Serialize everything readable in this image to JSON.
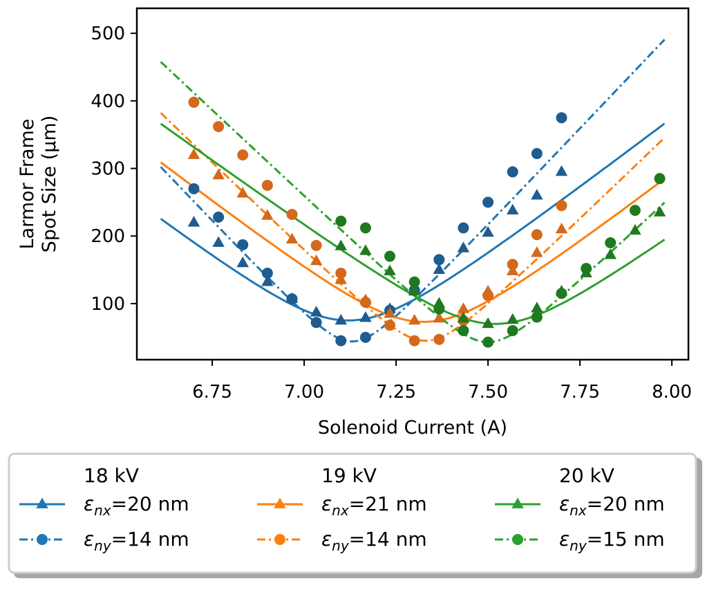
{
  "chart_data": {
    "type": "line",
    "title": "",
    "xlabel": "Solenoid Current (A)",
    "ylabel_line1": "Larmor Frame",
    "ylabel_line2": "Spot Size (μm)",
    "xlim": [
      6.545,
      8.045
    ],
    "ylim": [
      17,
      537
    ],
    "xticks": [
      6.75,
      7.0,
      7.25,
      7.5,
      7.75,
      8.0
    ],
    "xtick_labels": [
      "6.75",
      "7.00",
      "7.25",
      "7.50",
      "7.75",
      "8.00"
    ],
    "yticks": [
      100,
      200,
      300,
      400,
      500
    ],
    "ytick_labels": [
      "100",
      "200",
      "300",
      "400",
      "500"
    ],
    "legend": {
      "placement": "below",
      "columns": [
        {
          "header": "18 kV",
          "entries": [
            {
              "sym": "ε",
              "sub": "nx",
              "value": "=20 nm",
              "series": 0
            },
            {
              "sym": "ε",
              "sub": "ny",
              "value": "=14 nm",
              "series": 1
            }
          ]
        },
        {
          "header": "19 kV",
          "entries": [
            {
              "sym": "ε",
              "sub": "nx",
              "value": "=21 nm",
              "series": 2
            },
            {
              "sym": "ε",
              "sub": "ny",
              "value": "=14 nm",
              "series": 3
            }
          ]
        },
        {
          "header": "20 kV",
          "entries": [
            {
              "sym": "ε",
              "sub": "nx",
              "value": "=20 nm",
              "series": 4
            },
            {
              "sym": "ε",
              "sub": "ny",
              "value": "=15 nm",
              "series": 5
            }
          ]
        }
      ]
    },
    "series": [
      {
        "name": "18 kV εnx=20 nm",
        "color": "#1f77b4",
        "point_color": "#1f5c8f",
        "marker": "triangle",
        "linestyle": "solid",
        "fit": {
          "x0": 7.12,
          "y0": 75,
          "slope": 417,
          "range": [
            6.61,
            7.98
          ]
        },
        "points": [
          [
            6.7,
            220
          ],
          [
            6.767,
            190
          ],
          [
            6.833,
            160
          ],
          [
            6.9,
            132
          ],
          [
            6.967,
            107
          ],
          [
            7.033,
            87
          ],
          [
            7.1,
            75
          ],
          [
            7.167,
            79
          ],
          [
            7.233,
            92
          ],
          [
            7.3,
            120
          ],
          [
            7.367,
            150
          ],
          [
            7.433,
            182
          ],
          [
            7.5,
            205
          ],
          [
            7.567,
            238
          ],
          [
            7.633,
            260
          ],
          [
            7.7,
            295
          ]
        ]
      },
      {
        "name": "18 kV εny=14 nm",
        "color": "#1f77b4",
        "point_color": "#1f5c8f",
        "marker": "circle",
        "linestyle": "dashdot",
        "fit": {
          "x0": 7.13,
          "y0": 44,
          "slope": 575,
          "range": [
            6.61,
            7.98
          ]
        },
        "points": [
          [
            6.7,
            270
          ],
          [
            6.767,
            228
          ],
          [
            6.833,
            187
          ],
          [
            6.9,
            145
          ],
          [
            6.967,
            107
          ],
          [
            7.033,
            72
          ],
          [
            7.1,
            45
          ],
          [
            7.167,
            50
          ],
          [
            7.233,
            90
          ],
          [
            7.3,
            120
          ],
          [
            7.367,
            165
          ],
          [
            7.433,
            212
          ],
          [
            7.5,
            250
          ],
          [
            7.567,
            295
          ],
          [
            7.633,
            322
          ],
          [
            7.7,
            375
          ]
        ]
      },
      {
        "name": "19 kV εnx=21 nm",
        "color": "#ff7f0e",
        "point_color": "#d4691b",
        "marker": "triangle",
        "linestyle": "solid",
        "fit": {
          "x0": 7.325,
          "y0": 73,
          "slope": 420,
          "range": [
            6.61,
            7.98
          ]
        },
        "points": [
          [
            6.7,
            320
          ],
          [
            6.767,
            290
          ],
          [
            6.833,
            263
          ],
          [
            6.9,
            230
          ],
          [
            6.967,
            195
          ],
          [
            7.033,
            163
          ],
          [
            7.1,
            135
          ],
          [
            7.167,
            105
          ],
          [
            7.233,
            85
          ],
          [
            7.3,
            75
          ],
          [
            7.367,
            78
          ],
          [
            7.433,
            92
          ],
          [
            7.5,
            118
          ],
          [
            7.567,
            148
          ],
          [
            7.633,
            175
          ],
          [
            7.7,
            210
          ]
        ]
      },
      {
        "name": "19 kV εny=14 nm",
        "color": "#ff7f0e",
        "point_color": "#d4691b",
        "marker": "circle",
        "linestyle": "dashdot",
        "fit": {
          "x0": 7.33,
          "y0": 45,
          "slope": 527,
          "range": [
            6.61,
            7.98
          ]
        },
        "points": [
          [
            6.7,
            398
          ],
          [
            6.767,
            362
          ],
          [
            6.833,
            320
          ],
          [
            6.9,
            275
          ],
          [
            6.967,
            232
          ],
          [
            7.033,
            186
          ],
          [
            7.1,
            145
          ],
          [
            7.167,
            102
          ],
          [
            7.233,
            68
          ],
          [
            7.3,
            45
          ],
          [
            7.367,
            47
          ],
          [
            7.433,
            75
          ],
          [
            7.5,
            112
          ],
          [
            7.567,
            158
          ],
          [
            7.633,
            202
          ],
          [
            7.7,
            245
          ]
        ]
      },
      {
        "name": "20 kV εnx=20 nm",
        "color": "#2ca02c",
        "point_color": "#1f7a1f",
        "marker": "triangle",
        "linestyle": "solid",
        "fit": {
          "x0": 7.52,
          "y0": 70,
          "slope": 395,
          "range": [
            6.61,
            7.98
          ]
        },
        "points": [
          [
            7.1,
            185
          ],
          [
            7.167,
            178
          ],
          [
            7.233,
            148
          ],
          [
            7.3,
            118
          ],
          [
            7.367,
            100
          ],
          [
            7.433,
            78
          ],
          [
            7.5,
            70
          ],
          [
            7.567,
            76
          ],
          [
            7.633,
            93
          ],
          [
            7.7,
            118
          ],
          [
            7.767,
            145
          ],
          [
            7.833,
            172
          ],
          [
            7.9,
            208
          ],
          [
            7.967,
            235
          ]
        ]
      },
      {
        "name": "20 kV εny=15 nm",
        "color": "#2ca02c",
        "point_color": "#1f7a1f",
        "marker": "circle",
        "linestyle": "dashdot",
        "fit": {
          "x0": 7.5,
          "y0": 43,
          "slope": 512,
          "range": [
            6.61,
            7.98
          ]
        },
        "points": [
          [
            7.1,
            222
          ],
          [
            7.167,
            212
          ],
          [
            7.233,
            170
          ],
          [
            7.3,
            132
          ],
          [
            7.367,
            92
          ],
          [
            7.433,
            60
          ],
          [
            7.5,
            43
          ],
          [
            7.567,
            60
          ],
          [
            7.633,
            80
          ],
          [
            7.7,
            115
          ],
          [
            7.767,
            152
          ],
          [
            7.833,
            190
          ],
          [
            7.9,
            238
          ],
          [
            7.967,
            285
          ]
        ]
      }
    ]
  }
}
